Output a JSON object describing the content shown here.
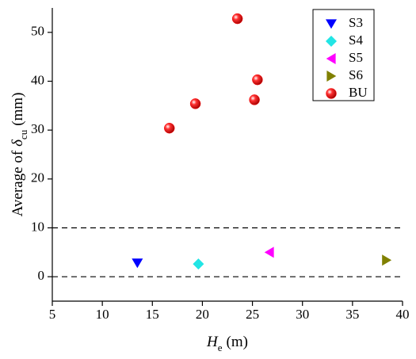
{
  "chart_data": {
    "type": "scatter",
    "xlabel": {
      "main": "H",
      "sub": "e",
      "rest": "(m)"
    },
    "ylabel": {
      "lead": "Average of",
      "main": "δ",
      "sub": "cu",
      "rest": "(mm)"
    },
    "xlim": [
      5,
      40
    ],
    "xticks": [
      5,
      10,
      15,
      20,
      25,
      30,
      35,
      40
    ],
    "ylim": [
      -5,
      55
    ],
    "yticks": [
      0,
      10,
      20,
      30,
      40,
      50
    ],
    "hlines": [
      0,
      10
    ],
    "legend": "upper right",
    "series": [
      {
        "name": "S3",
        "color": "#0000ff",
        "marker": "triangle-down",
        "x": [
          13.5
        ],
        "values": [
          2.8
        ]
      },
      {
        "name": "S4",
        "color": "#22e5e5",
        "marker": "diamond",
        "x": [
          19.6
        ],
        "values": [
          2.6
        ]
      },
      {
        "name": "S5",
        "color": "#ff00ff",
        "marker": "triangle-left",
        "x": [
          26.7
        ],
        "values": [
          5.0
        ]
      },
      {
        "name": "S6",
        "color": "#808000",
        "marker": "triangle-right",
        "x": [
          38.4
        ],
        "values": [
          3.4
        ]
      },
      {
        "name": "BU",
        "color": "#ff0000",
        "marker": "sphere",
        "x": [
          16.7,
          19.3,
          23.5,
          25.2,
          25.5
        ],
        "values": [
          30.4,
          35.4,
          52.8,
          36.2,
          40.3
        ]
      }
    ]
  }
}
